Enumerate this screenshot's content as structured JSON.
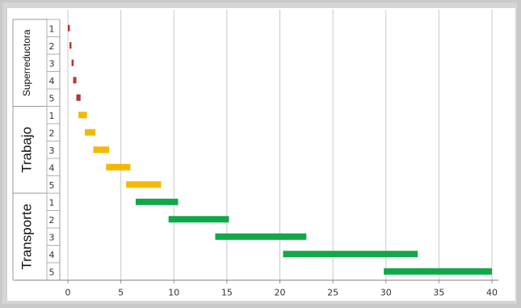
{
  "chart_data": {
    "type": "bar",
    "orientation": "horizontal-range",
    "title": "",
    "xlabel": "",
    "ylabel": "",
    "xlim": [
      0,
      40
    ],
    "xticks": [
      "0",
      "5",
      "10",
      "15",
      "20",
      "25",
      "30",
      "35",
      "40"
    ],
    "grid": "vertical",
    "groups": [
      {
        "name": "Superreductora",
        "color": "#b2363a",
        "bars": [
          {
            "gear": "1",
            "start": 0.0,
            "end": 0.15
          },
          {
            "gear": "2",
            "start": 0.15,
            "end": 0.3
          },
          {
            "gear": "3",
            "start": 0.35,
            "end": 0.55
          },
          {
            "gear": "4",
            "start": 0.5,
            "end": 0.8
          },
          {
            "gear": "5",
            "start": 0.8,
            "end": 1.2
          }
        ]
      },
      {
        "name": "Trabajo",
        "color": "#f5b800",
        "bars": [
          {
            "gear": "1",
            "start": 1.0,
            "end": 1.8
          },
          {
            "gear": "2",
            "start": 1.6,
            "end": 2.6
          },
          {
            "gear": "3",
            "start": 2.4,
            "end": 3.9
          },
          {
            "gear": "4",
            "start": 3.6,
            "end": 5.9
          },
          {
            "gear": "5",
            "start": 5.5,
            "end": 8.8
          }
        ]
      },
      {
        "name": "Transporte",
        "color": "#11a84a",
        "bars": [
          {
            "gear": "1",
            "start": 6.4,
            "end": 10.4
          },
          {
            "gear": "2",
            "start": 9.5,
            "end": 15.2
          },
          {
            "gear": "3",
            "start": 13.9,
            "end": 22.5
          },
          {
            "gear": "4",
            "start": 20.3,
            "end": 33.0
          },
          {
            "gear": "5",
            "start": 29.8,
            "end": 40.0
          }
        ]
      }
    ]
  }
}
